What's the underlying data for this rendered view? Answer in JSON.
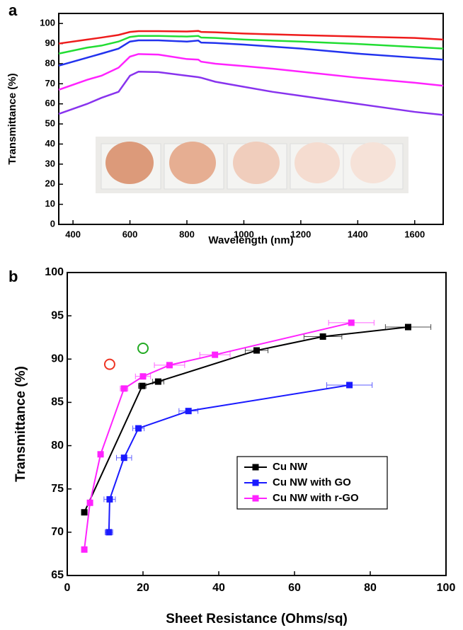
{
  "chart_data": [
    {
      "type": "line",
      "label": "a",
      "xlabel": "Wavelength (nm)",
      "ylabel": "Transmittance (%)",
      "xlim": [
        350,
        1700
      ],
      "xticks": [
        400,
        600,
        800,
        1000,
        1200,
        1400,
        1600
      ],
      "ylim": [
        0,
        105
      ],
      "yticks": [
        0,
        10,
        20,
        30,
        40,
        50,
        60,
        70,
        80,
        90,
        100
      ],
      "x": [
        350,
        450,
        500,
        560,
        600,
        630,
        700,
        800,
        840,
        850,
        900,
        1000,
        1100,
        1200,
        1400,
        1600,
        1700
      ],
      "series": [
        {
          "color": "#ee1c1c",
          "values": [
            90,
            92,
            93,
            94.3,
            95.8,
            96.2,
            96.2,
            96,
            96.3,
            95.8,
            95.6,
            95,
            94.6,
            94.2,
            93.5,
            92.8,
            92
          ]
        },
        {
          "color": "#22dd33",
          "values": [
            85,
            88,
            89,
            91,
            93.3,
            93.8,
            93.8,
            93.5,
            93.8,
            93,
            92.8,
            92,
            91.5,
            91,
            89.8,
            88.3,
            87.5
          ]
        },
        {
          "color": "#2233ee",
          "values": [
            79,
            83,
            85,
            87.5,
            91,
            91.6,
            91.6,
            91,
            91.5,
            90.5,
            90.3,
            89.5,
            88.5,
            87.5,
            85,
            83,
            82
          ]
        },
        {
          "color": "#ff22ff",
          "values": [
            67,
            72,
            74,
            78,
            83.5,
            84.8,
            84.5,
            82.3,
            82,
            81,
            80,
            78.8,
            77.5,
            76,
            73,
            70.5,
            69
          ]
        },
        {
          "color": "#8833ee",
          "values": [
            55,
            60,
            63,
            66,
            74,
            76,
            75.8,
            74,
            73.3,
            73,
            71,
            68.5,
            66,
            64,
            60,
            56,
            54.5
          ]
        }
      ]
    },
    {
      "type": "line",
      "label": "b",
      "xlabel": "Sheet Resistance (Ohms/sq)",
      "ylabel": "Transmittance (%)",
      "xlim": [
        0,
        100
      ],
      "xticks": [
        0,
        20,
        40,
        60,
        80,
        100
      ],
      "ylim": [
        65,
        100
      ],
      "yticks": [
        65,
        70,
        75,
        80,
        85,
        90,
        95,
        100
      ],
      "series": [
        {
          "name": "Cu NW",
          "color": "#000000",
          "x": [
            4.5,
            19.8,
            24,
            50,
            67.5,
            90
          ],
          "values": [
            72.3,
            86.9,
            87.4,
            91,
            92.6,
            93.7
          ],
          "xerr": [
            0.5,
            1,
            1.5,
            3,
            5,
            6
          ]
        },
        {
          "name": "Cu NW with GO",
          "color": "#1a1aff",
          "x": [
            11,
            11.2,
            15,
            18.8,
            32,
            74.5
          ],
          "values": [
            70,
            73.8,
            78.6,
            82,
            84,
            87
          ],
          "xerr": [
            1,
            1.5,
            2,
            1.5,
            2.5,
            6
          ]
        },
        {
          "name": "Cu NW with r-GO",
          "color": "#ff22ff",
          "x": [
            4.5,
            6,
            8.8,
            15,
            20,
            27,
            39,
            75
          ],
          "values": [
            68,
            73.4,
            79,
            86.6,
            88,
            89.3,
            90.5,
            94.2
          ],
          "xerr": [
            0.3,
            0.3,
            0.5,
            1,
            2,
            4,
            4,
            6
          ]
        }
      ],
      "reference_points": [
        {
          "x": 11.2,
          "y": 89.4,
          "color": "#ee3322"
        },
        {
          "x": 20,
          "y": 91.25,
          "color": "#22aa22"
        }
      ]
    }
  ]
}
